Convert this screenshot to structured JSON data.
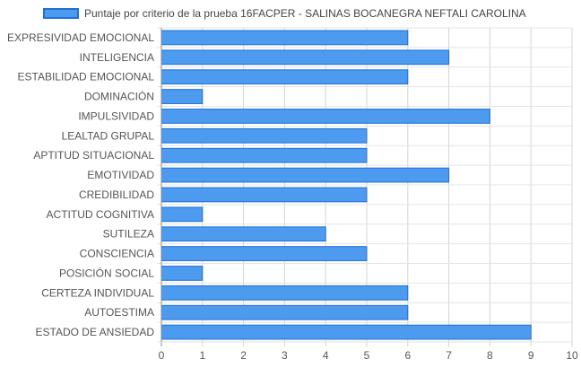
{
  "chart_data": {
    "type": "bar",
    "orientation": "horizontal",
    "categories": [
      "EXPRESIVIDAD EMOCIONAL",
      "INTELIGENCIA",
      "ESTABILIDAD EMOCIONAL",
      "DOMINACIÓN",
      "IMPULSIVIDAD",
      "LEALTAD GRUPAL",
      "APTITUD SITUACIONAL",
      "EMOTIVIDAD",
      "CREDIBILIDAD",
      "ACTITUD COGNITIVA",
      "SUTILEZA",
      "CONSCIENCIA",
      "POSICIÓN SOCIAL",
      "CERTEZA INDIVIDUAL",
      "AUTOESTIMA",
      "ESTADO DE ANSIEDAD"
    ],
    "series": [
      {
        "name": "Puntaje por criterio de la prueba 16FACPER - SALINAS BOCANEGRA NEFTALI CAROLINA",
        "values": [
          6,
          7,
          6,
          1,
          8,
          5,
          5,
          7,
          5,
          1,
          4,
          5,
          1,
          6,
          6,
          9
        ],
        "color": "#4C9BEF",
        "border_color": "#1E6FD9"
      }
    ],
    "x_ticks": [
      "0",
      "1",
      "2",
      "3",
      "4",
      "5",
      "6",
      "7",
      "8",
      "9",
      "10"
    ],
    "xlim": [
      0,
      10
    ],
    "grid": true,
    "legend_position": "top"
  }
}
